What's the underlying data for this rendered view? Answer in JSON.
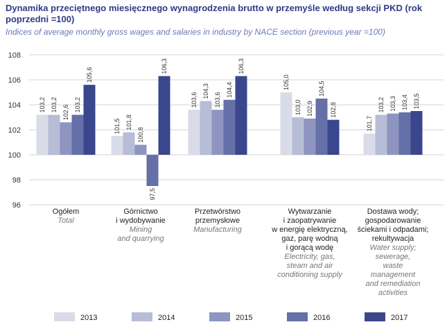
{
  "title": "Dynamika przeciętnego miesięcznego wynagrodzenia brutto w przemyśle według sekcji PKD (rok poprzedni =100)",
  "subtitle": "Indices of average monthly gross wages and salaries in industry by NACE section (previous year =100)",
  "colors": [
    "#d9dce8",
    "#b7bcd7",
    "#8d95c0",
    "#6570a8",
    "#3a478c"
  ],
  "chart_data": {
    "type": "bar",
    "title": "Dynamika przeciętnego miesięcznego wynagrodzenia brutto w przemyśle według sekcji PKD (rok poprzedni =100)",
    "subtitle": "Indices of average monthly gross wages and salaries in industry by NACE section (previous year =100)",
    "ylim": [
      96,
      108
    ],
    "yticks": [
      96,
      98,
      100,
      102,
      104,
      106,
      108
    ],
    "baseline": 100,
    "grid": true,
    "legend_position": "bottom",
    "categories": [
      {
        "pl": [
          "Ogółem"
        ],
        "en": [
          "Total"
        ]
      },
      {
        "pl": [
          "Górnictwo",
          "i wydobywanie"
        ],
        "en": [
          "Mining",
          "and quarrying"
        ]
      },
      {
        "pl": [
          "Przetwórstwo",
          "przemysłowe"
        ],
        "en": [
          "Manufacturing"
        ]
      },
      {
        "pl": [
          "Wytwarzanie",
          "i zaopatrywanie",
          "w energię elektryczną,",
          "gaz, parę wodną",
          "i gorącą wodę"
        ],
        "en": [
          "Electricity, gas,",
          "steam and air",
          "conditioning supply"
        ]
      },
      {
        "pl": [
          "Dostawa wody;",
          "gospodarowanie",
          "ściekami i odpadami;",
          "rekultywacja"
        ],
        "en": [
          "Water supply;",
          "sewerage,",
          "waste",
          "management",
          "and remediation",
          "activities"
        ]
      }
    ],
    "series": [
      {
        "name": "2013",
        "values": [
          103.2,
          101.5,
          103.6,
          105.0,
          101.7
        ],
        "labels": [
          "103,2",
          "101,5",
          "103,6",
          "105,0",
          "101,7"
        ]
      },
      {
        "name": "2014",
        "values": [
          103.2,
          101.8,
          104.3,
          103.0,
          103.2
        ],
        "labels": [
          "103,2",
          "101,8",
          "104,3",
          "103,0",
          "103,2"
        ]
      },
      {
        "name": "2015",
        "values": [
          102.6,
          100.8,
          103.6,
          102.9,
          103.3
        ],
        "labels": [
          "102,6",
          "100,8",
          "103,6",
          "102,9",
          "103,3"
        ]
      },
      {
        "name": "2016",
        "values": [
          103.2,
          97.5,
          104.4,
          104.5,
          103.4
        ],
        "labels": [
          "103,2",
          "97,5",
          "104,4",
          "104,5",
          "103,4"
        ]
      },
      {
        "name": "2017",
        "values": [
          105.6,
          106.3,
          106.3,
          102.8,
          103.5
        ],
        "labels": [
          "105,6",
          "106,3",
          "106,3",
          "102,8",
          "103,5"
        ]
      }
    ]
  }
}
